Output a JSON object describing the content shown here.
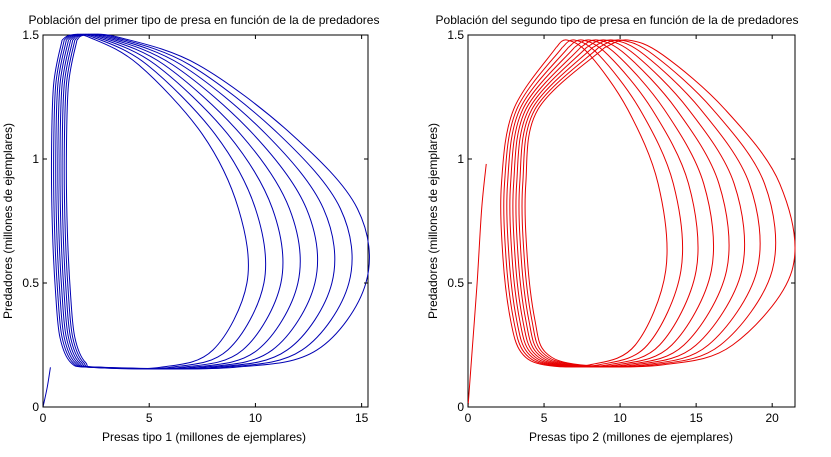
{
  "chart_data": [
    {
      "type": "line",
      "title": "Población del primer tipo de presa en  función de la de predadores",
      "xlabel": "Presas tipo 1 (millones de ejemplares)",
      "ylabel": "Predadores (millones de ejemplares)",
      "xlim": [
        0,
        15.3
      ],
      "ylim": [
        0,
        1.5
      ],
      "xticks": [
        0,
        5,
        10,
        15
      ],
      "yticks": [
        0,
        0.5,
        1,
        1.5
      ],
      "xtick_labels": [
        "0",
        "5",
        "10",
        "15"
      ],
      "ytick_labels": [
        "0",
        "0.5",
        "1",
        "1.5"
      ],
      "grid": false,
      "color": "#0000b3",
      "series": [
        {
          "x": [
            0.9,
            0.5,
            0.4,
            0.45,
            0.6,
            0.8,
            1.3,
            2.2,
            5.5,
            8,
            9.6,
            9.2,
            7.5,
            4.5,
            2.2,
            1.3,
            0.9
          ],
          "y": [
            1.48,
            1.3,
            1.0,
            0.7,
            0.45,
            0.28,
            0.18,
            0.16,
            0.16,
            0.23,
            0.5,
            0.8,
            1.1,
            1.38,
            1.49,
            1.5,
            1.48
          ]
        },
        {
          "x": [
            1.0,
            0.6,
            0.5,
            0.55,
            0.7,
            0.9,
            1.4,
            2.3,
            6.0,
            8.7,
            10.4,
            10.0,
            8.1,
            4.9,
            2.4,
            1.4,
            1.0
          ],
          "y": [
            1.48,
            1.3,
            1.0,
            0.7,
            0.45,
            0.28,
            0.18,
            0.16,
            0.16,
            0.23,
            0.5,
            0.8,
            1.1,
            1.38,
            1.49,
            1.5,
            1.48
          ]
        },
        {
          "x": [
            1.1,
            0.7,
            0.6,
            0.65,
            0.8,
            1.0,
            1.5,
            2.4,
            6.5,
            9.4,
            11.2,
            10.8,
            8.7,
            5.3,
            2.6,
            1.5,
            1.1
          ],
          "y": [
            1.48,
            1.3,
            1.0,
            0.7,
            0.45,
            0.28,
            0.18,
            0.16,
            0.16,
            0.23,
            0.5,
            0.8,
            1.1,
            1.38,
            1.49,
            1.5,
            1.48
          ]
        },
        {
          "x": [
            1.2,
            0.8,
            0.7,
            0.75,
            0.9,
            1.1,
            1.6,
            2.5,
            7.0,
            10.1,
            12.0,
            11.6,
            9.3,
            5.7,
            2.8,
            1.6,
            1.2
          ],
          "y": [
            1.48,
            1.3,
            1.0,
            0.7,
            0.45,
            0.28,
            0.18,
            0.16,
            0.16,
            0.23,
            0.5,
            0.8,
            1.1,
            1.38,
            1.49,
            1.5,
            1.48
          ]
        },
        {
          "x": [
            1.3,
            0.9,
            0.8,
            0.85,
            1.0,
            1.2,
            1.7,
            2.6,
            7.5,
            10.8,
            12.8,
            12.4,
            9.9,
            6.1,
            3.0,
            1.7,
            1.3
          ],
          "y": [
            1.48,
            1.3,
            1.0,
            0.7,
            0.45,
            0.28,
            0.18,
            0.16,
            0.16,
            0.23,
            0.5,
            0.8,
            1.1,
            1.38,
            1.49,
            1.5,
            1.48
          ]
        },
        {
          "x": [
            1.4,
            1.0,
            0.9,
            0.95,
            1.1,
            1.3,
            1.8,
            2.7,
            8.0,
            11.5,
            13.6,
            13.2,
            10.5,
            6.5,
            3.2,
            1.8,
            1.4
          ],
          "y": [
            1.48,
            1.3,
            1.0,
            0.7,
            0.45,
            0.28,
            0.18,
            0.16,
            0.16,
            0.23,
            0.5,
            0.8,
            1.1,
            1.38,
            1.49,
            1.5,
            1.48
          ]
        },
        {
          "x": [
            1.5,
            1.1,
            1.0,
            1.05,
            1.2,
            1.4,
            1.9,
            2.8,
            8.5,
            12.2,
            14.4,
            14.0,
            11.1,
            6.9,
            3.4,
            1.9,
            1.5
          ],
          "y": [
            1.48,
            1.3,
            1.0,
            0.7,
            0.45,
            0.28,
            0.18,
            0.16,
            0.16,
            0.23,
            0.5,
            0.8,
            1.1,
            1.38,
            1.49,
            1.5,
            1.48
          ]
        },
        {
          "x": [
            1.6,
            1.2,
            1.1,
            1.15,
            1.3,
            1.5,
            2.0,
            2.9,
            9.0,
            12.9,
            15.2,
            14.8,
            11.7,
            7.3,
            3.6,
            2.0,
            1.6
          ],
          "y": [
            1.48,
            1.3,
            1.0,
            0.7,
            0.45,
            0.28,
            0.18,
            0.16,
            0.16,
            0.23,
            0.5,
            0.8,
            1.1,
            1.38,
            1.49,
            1.5,
            1.48
          ]
        },
        {
          "x": [
            0.0,
            0.2,
            0.35
          ],
          "y": [
            0.0,
            0.08,
            0.16
          ]
        }
      ]
    },
    {
      "type": "line",
      "title": "Población del segundo tipo de presa en función de la de predadores",
      "xlabel": "Presas tipo 2 (millones de ejemplares)",
      "ylabel": "Predadores (millones de ejemplares)",
      "xlim": [
        0,
        21.5
      ],
      "ylim": [
        0,
        1.5
      ],
      "xticks": [
        0,
        5,
        10,
        15,
        20
      ],
      "yticks": [
        0,
        0.5,
        1,
        1.5
      ],
      "xtick_labels": [
        "0",
        "5",
        "10",
        "15",
        "20"
      ],
      "ytick_labels": [
        "0",
        "0.5",
        "1",
        "1.5"
      ],
      "grid": false,
      "color": "#e60000",
      "series": [
        {
          "x": [
            5.8,
            3.0,
            2.2,
            2.3,
            2.8,
            3.5,
            5.0,
            8.0,
            11.0,
            13.0,
            12.5,
            10.5,
            8.0,
            6.5,
            5.8
          ],
          "y": [
            1.45,
            1.2,
            0.9,
            0.6,
            0.35,
            0.22,
            0.17,
            0.17,
            0.25,
            0.55,
            0.9,
            1.2,
            1.42,
            1.48,
            1.45
          ]
        },
        {
          "x": [
            6.2,
            3.2,
            2.4,
            2.5,
            3.0,
            3.7,
            5.3,
            8.6,
            11.8,
            14.0,
            13.5,
            11.3,
            8.6,
            7.0,
            6.2
          ],
          "y": [
            1.45,
            1.2,
            0.9,
            0.6,
            0.35,
            0.22,
            0.17,
            0.17,
            0.25,
            0.55,
            0.9,
            1.2,
            1.42,
            1.48,
            1.45
          ]
        },
        {
          "x": [
            6.6,
            3.4,
            2.6,
            2.7,
            3.2,
            3.9,
            5.6,
            9.2,
            12.6,
            15.0,
            14.5,
            12.1,
            9.2,
            7.5,
            6.6
          ],
          "y": [
            1.45,
            1.2,
            0.9,
            0.6,
            0.35,
            0.22,
            0.17,
            0.17,
            0.25,
            0.55,
            0.9,
            1.2,
            1.42,
            1.48,
            1.45
          ]
        },
        {
          "x": [
            7.0,
            3.6,
            2.8,
            2.9,
            3.4,
            4.1,
            5.9,
            9.8,
            13.4,
            16.0,
            15.5,
            12.9,
            9.8,
            8.0,
            7.0
          ],
          "y": [
            1.45,
            1.2,
            0.9,
            0.6,
            0.35,
            0.22,
            0.17,
            0.17,
            0.25,
            0.55,
            0.9,
            1.2,
            1.42,
            1.48,
            1.45
          ]
        },
        {
          "x": [
            7.4,
            3.8,
            3.0,
            3.1,
            3.6,
            4.3,
            6.2,
            10.4,
            14.2,
            17.0,
            16.5,
            13.7,
            10.4,
            8.5,
            7.4
          ],
          "y": [
            1.45,
            1.2,
            0.9,
            0.6,
            0.35,
            0.22,
            0.17,
            0.17,
            0.25,
            0.55,
            0.9,
            1.2,
            1.42,
            1.48,
            1.45
          ]
        },
        {
          "x": [
            7.8,
            4.0,
            3.2,
            3.3,
            3.8,
            4.5,
            6.5,
            11.0,
            15.0,
            18.0,
            17.5,
            14.5,
            11.0,
            9.0,
            7.8
          ],
          "y": [
            1.45,
            1.2,
            0.9,
            0.6,
            0.35,
            0.22,
            0.17,
            0.17,
            0.25,
            0.55,
            0.9,
            1.2,
            1.42,
            1.48,
            1.45
          ]
        },
        {
          "x": [
            8.2,
            4.2,
            3.4,
            3.5,
            4.0,
            4.7,
            6.8,
            11.6,
            15.8,
            19.0,
            18.5,
            15.3,
            11.6,
            9.5,
            8.2
          ],
          "y": [
            1.45,
            1.2,
            0.9,
            0.6,
            0.35,
            0.22,
            0.17,
            0.17,
            0.25,
            0.55,
            0.9,
            1.2,
            1.42,
            1.48,
            1.45
          ]
        },
        {
          "x": [
            8.6,
            4.4,
            3.6,
            3.7,
            4.2,
            4.9,
            7.1,
            12.2,
            16.6,
            20.0,
            19.5,
            16.1,
            12.2,
            10.0,
            8.6
          ],
          "y": [
            1.45,
            1.2,
            0.9,
            0.6,
            0.35,
            0.22,
            0.17,
            0.17,
            0.25,
            0.55,
            0.9,
            1.2,
            1.42,
            1.48,
            1.45
          ]
        },
        {
          "x": [
            9.0,
            4.6,
            3.8,
            3.9,
            4.4,
            5.1,
            7.4,
            12.8,
            17.4,
            21.3,
            20.5,
            16.9,
            12.8,
            10.5,
            9.0
          ],
          "y": [
            1.45,
            1.2,
            0.9,
            0.6,
            0.35,
            0.22,
            0.17,
            0.17,
            0.25,
            0.55,
            0.9,
            1.2,
            1.42,
            1.48,
            1.45
          ]
        },
        {
          "x": [
            0.0,
            0.3,
            0.6,
            0.9,
            1.2
          ],
          "y": [
            0.0,
            0.25,
            0.5,
            0.8,
            0.98
          ]
        }
      ]
    }
  ]
}
